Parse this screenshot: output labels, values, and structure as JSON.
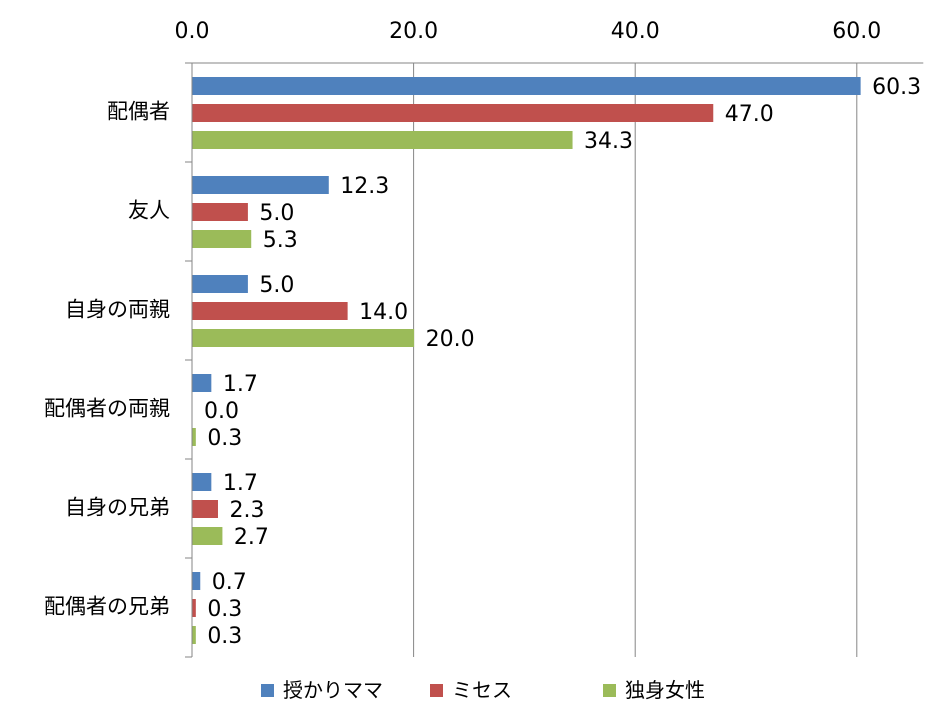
{
  "chart_data": {
    "type": "bar",
    "orientation": "horizontal",
    "categories": [
      "配偶者",
      "友人",
      "自身の両親",
      "配偶者の両親",
      "自身の兄弟",
      "配偶者の兄弟"
    ],
    "series": [
      {
        "name": "授かりママ",
        "color": "#4f81bd",
        "values": [
          60.3,
          12.3,
          5.0,
          1.7,
          1.7,
          0.7
        ]
      },
      {
        "name": "ミセス",
        "color": "#c0504d",
        "values": [
          47.0,
          5.0,
          14.0,
          0.0,
          2.3,
          0.3
        ]
      },
      {
        "name": "独身女性",
        "color": "#9bbb59",
        "values": [
          34.3,
          5.3,
          20.0,
          0.3,
          2.7,
          0.3
        ]
      }
    ],
    "xlim": [
      0,
      66
    ],
    "xticks": [
      "0.0",
      "20.0",
      "40.0",
      "60.0"
    ],
    "xtick_values": [
      0,
      20,
      40,
      60
    ],
    "grid": "vertical",
    "xaxis_position": "top",
    "legend_position": "bottom",
    "title": "",
    "xlabel": "",
    "ylabel": ""
  }
}
